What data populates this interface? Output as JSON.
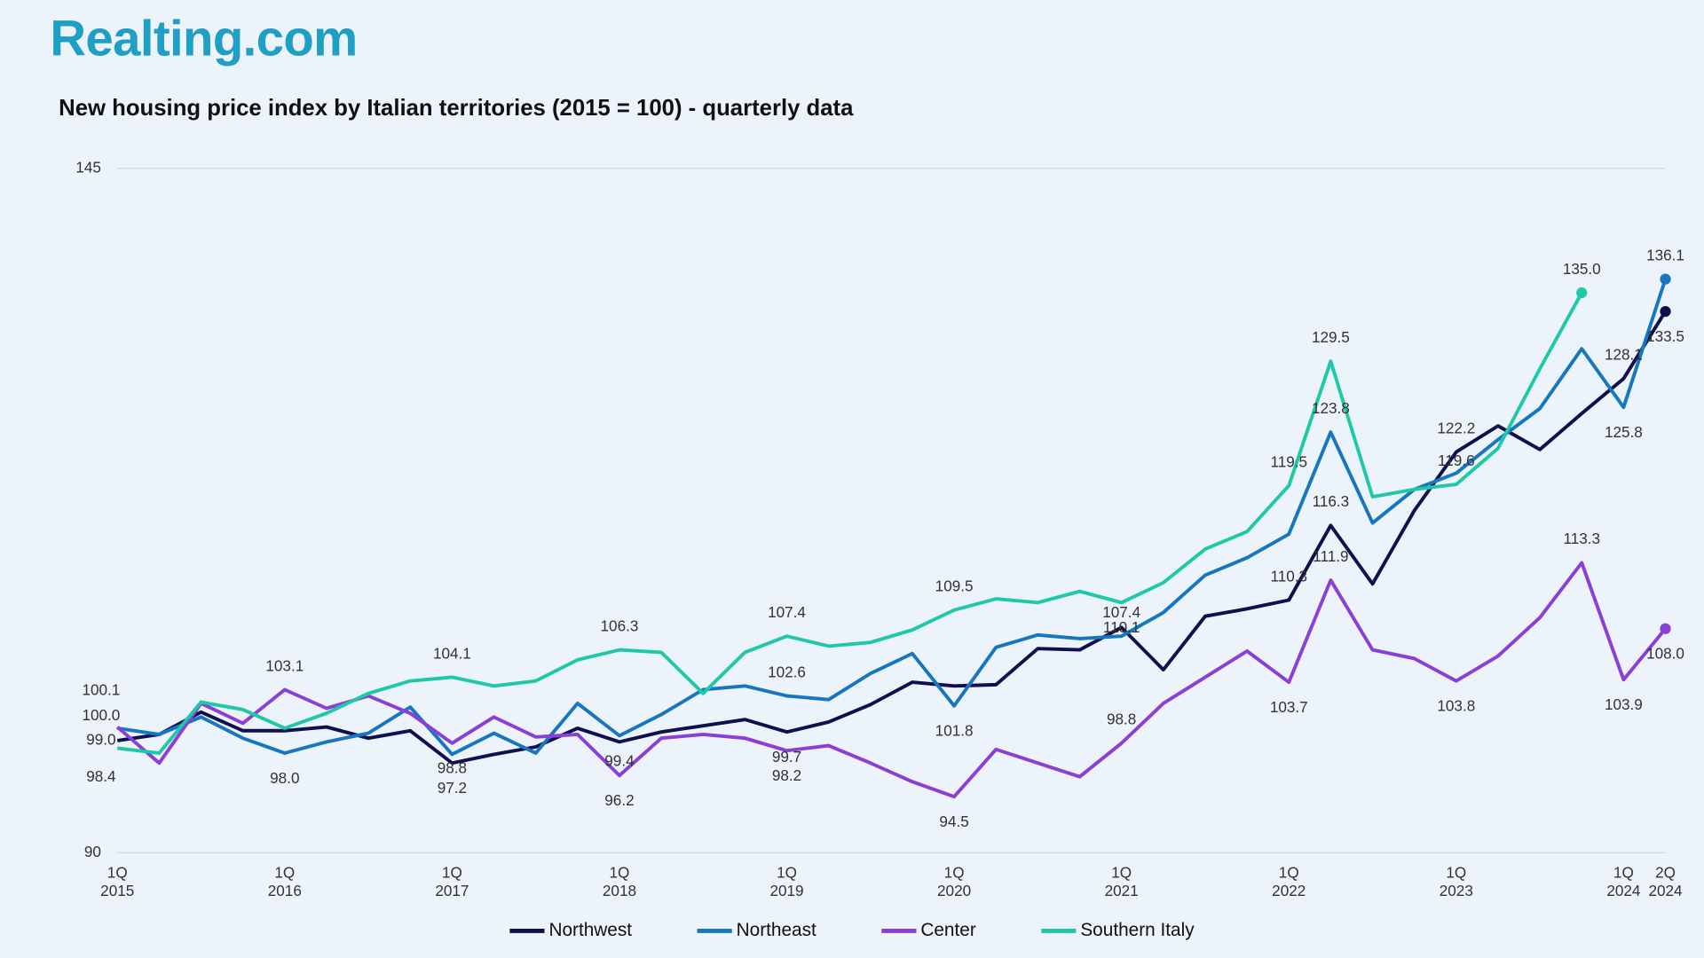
{
  "brand": "Realting.com",
  "chart_data": {
    "type": "line",
    "title": "New housing price index by Italian territories (2015 = 100) - quarterly data",
    "categories": [
      "1Q\n2015",
      null,
      null,
      null,
      "1Q\n2016",
      null,
      null,
      null,
      "1Q\n2017",
      null,
      null,
      null,
      "1Q\n2018",
      null,
      null,
      null,
      "1Q\n2019",
      null,
      null,
      null,
      "1Q\n2020",
      null,
      null,
      null,
      "1Q\n2021",
      null,
      null,
      null,
      "1Q\n2022",
      null,
      null,
      null,
      "1Q\n2023",
      null,
      null,
      null,
      "1Q\n2024",
      "2Q\n2024"
    ],
    "ylim": [
      90,
      145
    ],
    "yticks": [
      90,
      145
    ],
    "grid": true,
    "legend": "bottom",
    "series": [
      {
        "name": "Northwest",
        "color": "#10104f",
        "values": [
          99.0,
          99.5,
          101.3,
          99.8,
          99.8,
          100.1,
          99.2,
          99.8,
          97.2,
          97.9,
          98.5,
          100.0,
          98.9,
          99.7,
          100.2,
          100.7,
          99.7,
          100.5,
          101.9,
          103.7,
          103.4,
          103.5,
          106.4,
          106.3,
          108.1,
          104.7,
          109.0,
          109.6,
          110.3,
          116.3,
          111.6,
          117.5,
          122.2,
          124.3,
          122.4,
          125.3,
          128.1,
          133.5
        ],
        "value_labels": [
          "99.0",
          null,
          null,
          null,
          null,
          null,
          null,
          null,
          "97.2",
          null,
          null,
          null,
          null,
          null,
          null,
          null,
          "99.7",
          null,
          null,
          null,
          null,
          null,
          null,
          null,
          null,
          null,
          null,
          null,
          "110.3",
          "116.3",
          null,
          null,
          "122.2",
          null,
          null,
          null,
          "128.1",
          "133.5"
        ]
      },
      {
        "name": "Northeast",
        "color": "#1677c0",
        "values": [
          100.0,
          99.5,
          100.9,
          99.2,
          98.0,
          98.9,
          99.6,
          101.7,
          97.9,
          99.6,
          98.0,
          102.0,
          99.4,
          101.1,
          103.1,
          103.4,
          102.6,
          102.3,
          104.4,
          106.0,
          101.8,
          106.5,
          107.5,
          107.2,
          107.4,
          109.3,
          112.3,
          113.7,
          115.6,
          123.8,
          116.5,
          119.2,
          120.5,
          123.2,
          125.7,
          130.5,
          125.8,
          136.1
        ],
        "value_labels": [
          "100.0",
          null,
          null,
          null,
          "98.0",
          null,
          null,
          null,
          null,
          null,
          null,
          null,
          "99.4",
          null,
          null,
          null,
          "102.6",
          null,
          null,
          null,
          "101.8",
          null,
          null,
          null,
          "107.4",
          null,
          null,
          null,
          null,
          "123.8",
          null,
          null,
          null,
          null,
          null,
          null,
          "125.8",
          "136.1"
        ]
      },
      {
        "name": "Center",
        "color": "#8b3fd6",
        "values": [
          100.1,
          97.2,
          102.0,
          100.4,
          103.1,
          101.6,
          102.6,
          101.2,
          98.8,
          100.9,
          99.3,
          99.5,
          96.2,
          99.2,
          99.5,
          99.2,
          98.2,
          98.6,
          97.2,
          95.7,
          94.5,
          98.3,
          97.2,
          96.1,
          98.8,
          102.0,
          104.1,
          106.2,
          103.7,
          111.9,
          106.3,
          105.6,
          103.8,
          105.8,
          108.9,
          113.3,
          103.9,
          108.0
        ],
        "value_labels": [
          "100.1",
          null,
          null,
          null,
          "103.1",
          null,
          null,
          null,
          "98.8",
          null,
          null,
          null,
          "96.2",
          null,
          null,
          null,
          "98.2",
          null,
          null,
          null,
          "94.5",
          null,
          null,
          null,
          "98.8",
          null,
          null,
          null,
          "103.7",
          "111.9",
          null,
          null,
          "103.8",
          null,
          null,
          "113.3",
          "103.9",
          "108.0"
        ]
      },
      {
        "name": "Southern Italy",
        "color": "#1fc9a8",
        "values": [
          98.4,
          98.0,
          102.1,
          101.5,
          100.0,
          101.2,
          102.8,
          103.8,
          104.1,
          103.4,
          103.8,
          105.5,
          106.3,
          106.1,
          102.8,
          106.1,
          107.4,
          106.6,
          106.9,
          107.9,
          109.5,
          110.4,
          110.1,
          111.0,
          110.1,
          111.7,
          114.4,
          115.8,
          119.5,
          129.5,
          118.6,
          119.2,
          119.6,
          122.5,
          128.9,
          135.0,
          null,
          null
        ],
        "value_labels": [
          "98.4",
          null,
          null,
          null,
          null,
          null,
          null,
          null,
          "104.1",
          null,
          null,
          null,
          "106.3",
          null,
          null,
          null,
          "107.4",
          null,
          null,
          null,
          "109.5",
          null,
          null,
          null,
          "110.1",
          null,
          null,
          null,
          "119.5",
          "129.5",
          null,
          null,
          "119.6",
          null,
          null,
          "135.0",
          null,
          null
        ]
      }
    ]
  }
}
